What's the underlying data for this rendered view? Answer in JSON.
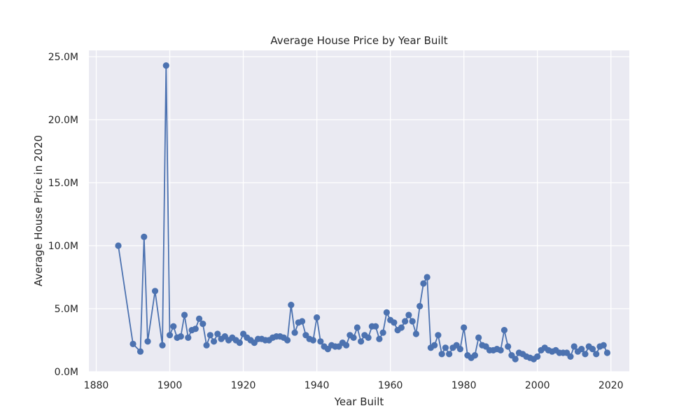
{
  "chart_data": {
    "type": "line",
    "title": "Average House Price by Year Built",
    "xlabel": "Year Built",
    "ylabel": "Average House Price in 2020",
    "xlim": [
      1878,
      2025
    ],
    "ylim": [
      0,
      25.5
    ],
    "x_ticks": [
      1880,
      1900,
      1920,
      1940,
      1960,
      1980,
      2000,
      2020
    ],
    "x_tick_labels": [
      "1880",
      "1900",
      "1920",
      "1940",
      "1960",
      "1980",
      "2000",
      "2020"
    ],
    "y_ticks": [
      0,
      5,
      10,
      15,
      20,
      25
    ],
    "y_tick_labels": [
      "0.0M",
      "5.0M",
      "10.0M",
      "15.0M",
      "20.0M",
      "25.0M"
    ],
    "y_unit": "millions",
    "grid": true,
    "colors": {
      "series": "#4c72b0",
      "plot_background": "#eaeaf2",
      "grid": "#ffffff"
    },
    "series": [
      {
        "x": [
          1886,
          1890,
          1892,
          1893,
          1894,
          1896,
          1898,
          1899,
          1900,
          1901,
          1902,
          1903,
          1904,
          1905,
          1906,
          1907,
          1908,
          1909,
          1910,
          1911,
          1912,
          1913,
          1914,
          1915,
          1916,
          1917,
          1918,
          1919,
          1920,
          1921,
          1922,
          1923,
          1924,
          1925,
          1926,
          1927,
          1928,
          1929,
          1930,
          1931,
          1932,
          1933,
          1934,
          1935,
          1936,
          1937,
          1938,
          1939,
          1940,
          1941,
          1942,
          1943,
          1944,
          1945,
          1946,
          1947,
          1948,
          1949,
          1950,
          1951,
          1952,
          1953,
          1954,
          1955,
          1956,
          1957,
          1958,
          1959,
          1960,
          1961,
          1962,
          1963,
          1964,
          1965,
          1966,
          1967,
          1968,
          1969,
          1970,
          1971,
          1972,
          1973,
          1974,
          1975,
          1976,
          1977,
          1978,
          1979,
          1980,
          1981,
          1982,
          1983,
          1984,
          1985,
          1986,
          1987,
          1988,
          1989,
          1990,
          1991,
          1992,
          1993,
          1994,
          1995,
          1996,
          1997,
          1998,
          1999,
          2000,
          2001,
          2002,
          2003,
          2004,
          2005,
          2006,
          2007,
          2008,
          2009,
          2010,
          2011,
          2012,
          2013,
          2014,
          2015,
          2016,
          2017,
          2018,
          2019
        ],
        "values": [
          10.0,
          2.2,
          1.6,
          10.7,
          2.4,
          6.4,
          2.1,
          24.3,
          2.9,
          3.6,
          2.7,
          2.8,
          4.5,
          2.7,
          3.3,
          3.4,
          4.2,
          3.8,
          2.1,
          2.9,
          2.4,
          3.0,
          2.6,
          2.8,
          2.5,
          2.7,
          2.5,
          2.3,
          3.0,
          2.7,
          2.5,
          2.3,
          2.6,
          2.6,
          2.5,
          2.5,
          2.7,
          2.8,
          2.8,
          2.7,
          2.5,
          5.3,
          3.1,
          3.9,
          4.0,
          2.9,
          2.6,
          2.5,
          4.3,
          2.4,
          2.0,
          1.8,
          2.1,
          2.0,
          2.0,
          2.3,
          2.1,
          2.9,
          2.7,
          3.5,
          2.4,
          2.9,
          2.7,
          3.6,
          3.6,
          2.6,
          3.1,
          4.7,
          4.1,
          3.9,
          3.3,
          3.5,
          4.0,
          4.5,
          4.0,
          3.0,
          5.2,
          7.0,
          7.5,
          1.9,
          2.1,
          2.9,
          1.4,
          1.9,
          1.4,
          1.9,
          2.1,
          1.8,
          3.5,
          1.3,
          1.1,
          1.3,
          2.7,
          2.1,
          2.0,
          1.7,
          1.7,
          1.8,
          1.7,
          3.3,
          2.0,
          1.3,
          1.0,
          1.5,
          1.4,
          1.2,
          1.1,
          1.0,
          1.2,
          1.7,
          1.9,
          1.7,
          1.6,
          1.7,
          1.5,
          1.5,
          1.5,
          1.2,
          2.0,
          1.6,
          1.8,
          1.4,
          2.0,
          1.8,
          1.4,
          2.0,
          2.1,
          1.5
        ]
      }
    ]
  }
}
